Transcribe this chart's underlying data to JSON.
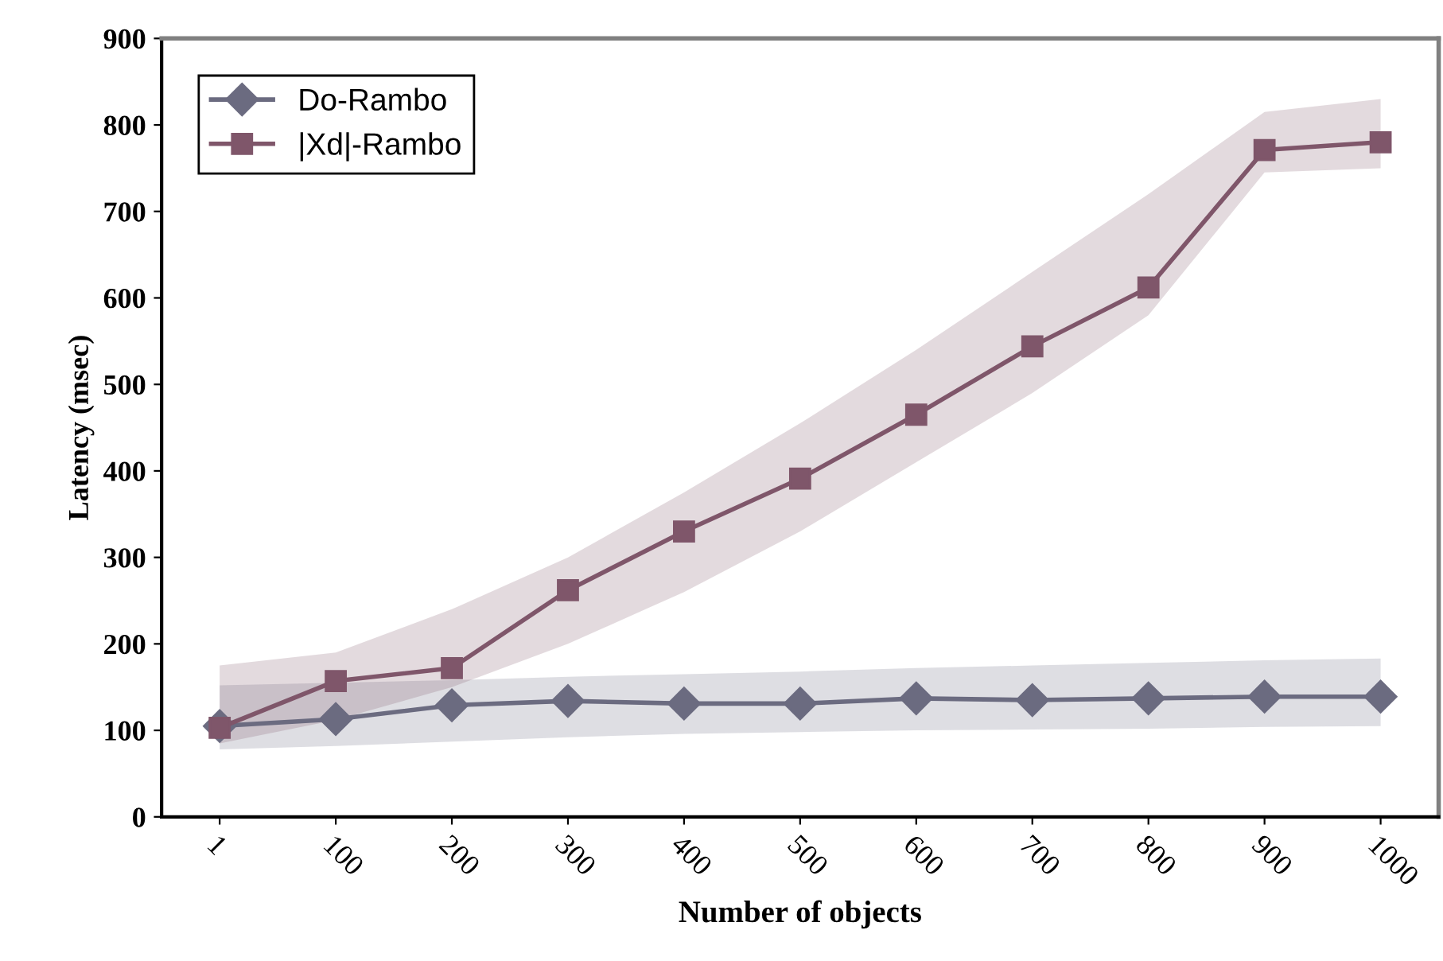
{
  "chart_data": {
    "type": "line",
    "xlabel": "Number of objects",
    "ylabel": "Latency (msec)",
    "categories": [
      "1",
      "100",
      "200",
      "300",
      "400",
      "500",
      "600",
      "700",
      "800",
      "900",
      "1000"
    ],
    "ylim": [
      0,
      900
    ],
    "yticks": [
      0,
      100,
      200,
      300,
      400,
      500,
      600,
      700,
      800,
      900
    ],
    "grid": false,
    "legend": "top left",
    "series": [
      {
        "name": "Do-Rambo",
        "color": "#6b6b80",
        "marker": "diamond",
        "values": [
          105,
          113,
          129,
          134,
          131,
          131,
          137,
          135,
          137,
          139,
          139
        ],
        "lower": [
          78,
          82,
          87,
          92,
          96,
          98,
          100,
          101,
          102,
          104,
          105
        ],
        "upper": [
          152,
          155,
          158,
          162,
          165,
          168,
          172,
          175,
          178,
          181,
          183
        ]
      },
      {
        "name": "|Xd|-Rambo",
        "color": "#7f566a",
        "marker": "square",
        "values": [
          103,
          157,
          172,
          262,
          330,
          391,
          465,
          544,
          612,
          771,
          780
        ],
        "lower": [
          85,
          112,
          150,
          200,
          260,
          330,
          410,
          490,
          580,
          745,
          750
        ],
        "upper": [
          175,
          190,
          240,
          300,
          375,
          455,
          540,
          630,
          720,
          815,
          830
        ]
      }
    ]
  }
}
